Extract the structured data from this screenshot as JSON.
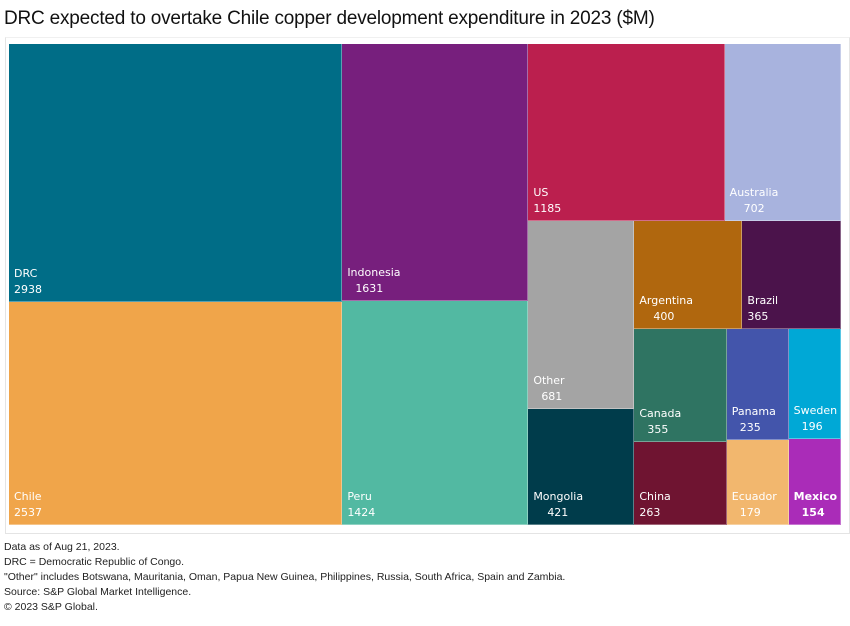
{
  "title": "DRC expected to overtake Chile copper development expenditure in 2023 ($M)",
  "chart_data": {
    "type": "treemap",
    "title": "DRC expected to overtake Chile copper development expenditure in 2023 ($M)",
    "unit": "$M",
    "items": [
      {
        "name": "DRC",
        "value": 2938,
        "color": "#006d87"
      },
      {
        "name": "Chile",
        "value": 2537,
        "color": "#f0a54a"
      },
      {
        "name": "Indonesia",
        "value": 1631,
        "color": "#771f7d"
      },
      {
        "name": "Peru",
        "value": 1424,
        "color": "#52b9a2"
      },
      {
        "name": "US",
        "value": 1185,
        "color": "#bb1f4e"
      },
      {
        "name": "Australia",
        "value": 702,
        "color": "#a8b3de"
      },
      {
        "name": "Other",
        "value": 681,
        "color": "#a4a4a4"
      },
      {
        "name": "Mongolia",
        "value": 421,
        "color": "#003c4b"
      },
      {
        "name": "Argentina",
        "value": 400,
        "color": "#b0670e"
      },
      {
        "name": "Brazil",
        "value": 365,
        "color": "#4b134b"
      },
      {
        "name": "Canada",
        "value": 355,
        "color": "#2f7462"
      },
      {
        "name": "China",
        "value": 263,
        "color": "#6f1431"
      },
      {
        "name": "Panama",
        "value": 235,
        "color": "#4355ab"
      },
      {
        "name": "Sweden",
        "value": 196,
        "color": "#00a8d6"
      },
      {
        "name": "Ecuador",
        "value": 179,
        "color": "#f2b76e"
      },
      {
        "name": "Mexico",
        "value": 154,
        "color": "#aa2cb8"
      }
    ]
  },
  "notes": [
    "Data as of Aug 21, 2023.",
    "DRC = Democratic Republic of Congo.",
    "\"Other\" includes Botswana, Mauritania, Oman, Papua New Guinea, Philippines, Russia, South Africa, Spain and Zambia.",
    "Source: S&P Global Market Intelligence.",
    "© 2023 S&P Global."
  ]
}
